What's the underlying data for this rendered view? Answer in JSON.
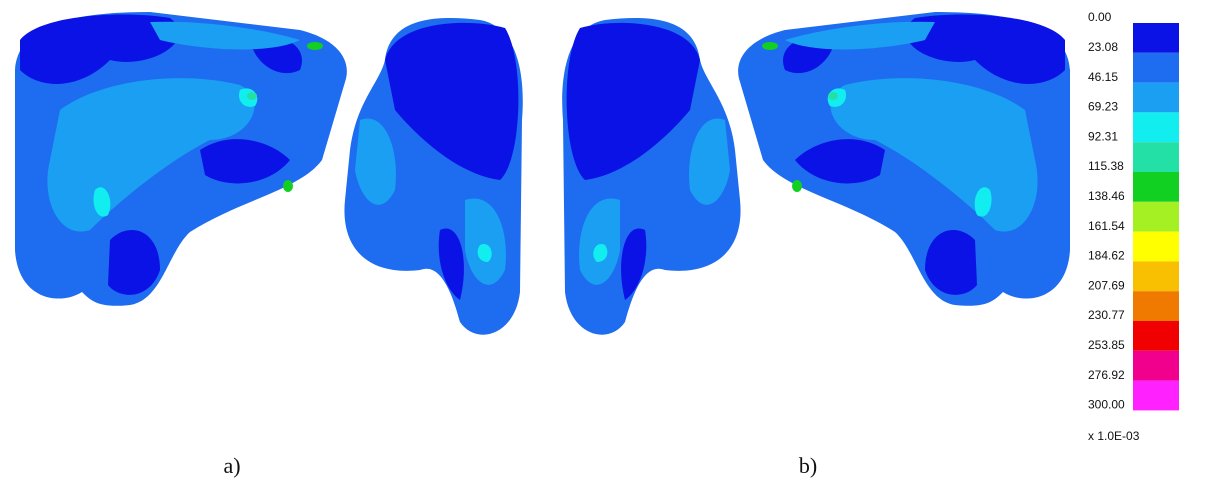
{
  "legend": {
    "ticks": [
      "0.00",
      "23.08",
      "46.15",
      "69.23",
      "92.31",
      "115.38",
      "138.46",
      "161.54",
      "184.62",
      "207.69",
      "230.77",
      "253.85",
      "276.92",
      "300.00"
    ],
    "colors": [
      "#0a12e6",
      "#1e6cf0",
      "#1a9ff2",
      "#12eef0",
      "#22e0a6",
      "#12d022",
      "#a4f022",
      "#ffff00",
      "#f8c000",
      "#f07a00",
      "#f00000",
      "#f0008c",
      "#ff22ff"
    ],
    "scale": "x 1.0E-03"
  },
  "panels": [
    {
      "label": "a)"
    },
    {
      "label": "b)"
    }
  ]
}
